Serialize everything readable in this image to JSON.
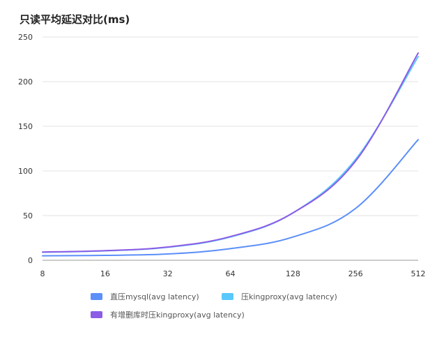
{
  "chart_data": {
    "type": "line",
    "title": "只读平均延迟对比(ms)",
    "xlabel": "",
    "ylabel": "",
    "x_scale": "log2",
    "x": [
      8,
      16,
      32,
      64,
      128,
      256,
      512
    ],
    "x_tick_labels": [
      "8",
      "16",
      "32",
      "64",
      "128",
      "256",
      "512"
    ],
    "ylim": [
      0,
      250
    ],
    "y_ticks": [
      0,
      50,
      100,
      150,
      200,
      250
    ],
    "y_tick_labels": [
      "0",
      "50",
      "100",
      "150",
      "200",
      "250"
    ],
    "grid": true,
    "legend_position": "bottom",
    "series": [
      {
        "name": "直压mysql(avg latency)",
        "color": "#5b8ff9",
        "values": [
          5,
          5.5,
          7,
          13,
          26,
          58,
          135
        ]
      },
      {
        "name": "压kingproxy(avg latency)",
        "color": "#5ac8fa",
        "values": [
          9,
          10.5,
          14.5,
          26,
          53,
          113,
          228
        ]
      },
      {
        "name": "有增删库时压kingproxy(avg latency)",
        "color": "#8c5ce6",
        "values": [
          9.2,
          10.7,
          14.8,
          26.5,
          53,
          111,
          232
        ]
      }
    ]
  }
}
